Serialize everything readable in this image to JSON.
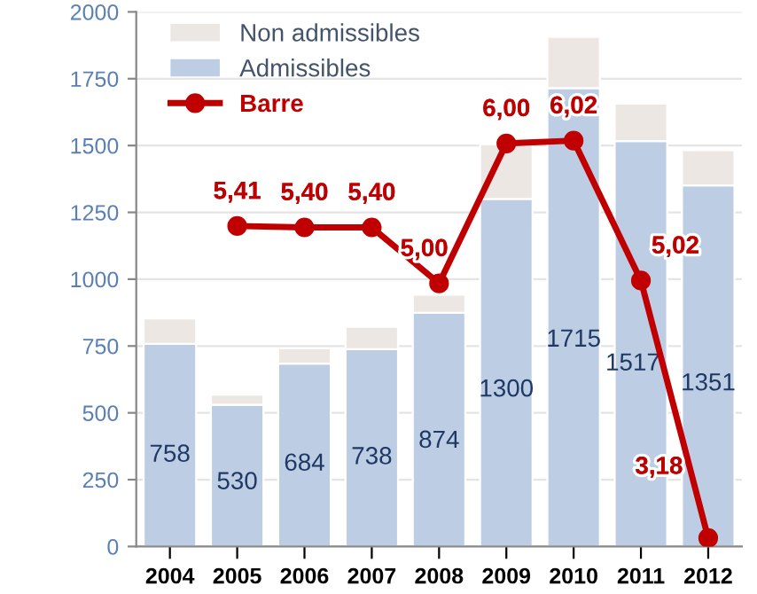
{
  "chart_data": {
    "type": "bar",
    "stacked": true,
    "categories": [
      "2004",
      "2005",
      "2006",
      "2007",
      "2008",
      "2009",
      "2010",
      "2011",
      "2012"
    ],
    "series": [
      {
        "name": "Admissibles",
        "color": "#bccde4",
        "values": [
          758,
          530,
          684,
          738,
          874,
          1300,
          1715,
          1517,
          1351
        ],
        "value_labels": [
          "758",
          "530",
          "684",
          "738",
          "874",
          "1300",
          "1715",
          "1517",
          "1351"
        ]
      },
      {
        "name": "Non admissibles",
        "color": "#ece7e3",
        "values": [
          95,
          38,
          57,
          84,
          68,
          205,
          191,
          140,
          132
        ]
      },
      {
        "name": "Barre",
        "type": "line",
        "axis": "y2",
        "color": "#c00000",
        "marker": "circle",
        "values": [
          null,
          5.41,
          5.4,
          5.4,
          5.0,
          6.0,
          6.02,
          5.02,
          3.18
        ],
        "value_labels": [
          null,
          "5,41",
          "5,40",
          "5,40",
          "5,00",
          "6,00",
          "6,02",
          "5,02",
          "3,18"
        ]
      }
    ],
    "ylim": [
      0,
      2000
    ],
    "yticks": [
      0,
      250,
      500,
      750,
      1000,
      1250,
      1500,
      1750,
      2000
    ],
    "y2lim": [
      3.12,
      6.94
    ],
    "grid": "y",
    "legend": "top left"
  }
}
